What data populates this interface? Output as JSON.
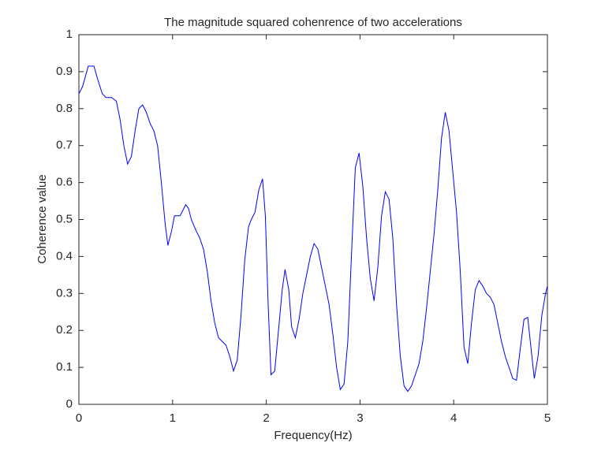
{
  "chart_data": {
    "type": "line",
    "title": "The magnitude squared cohenrence of two accelerations",
    "x_label": "Frequency(Hz)",
    "y_label": "Coherence value",
    "x": [
      0,
      0.04,
      0.1,
      0.16,
      0.2,
      0.25,
      0.29,
      0.35,
      0.4,
      0.44,
      0.48,
      0.52,
      0.56,
      0.6,
      0.64,
      0.68,
      0.72,
      0.76,
      0.8,
      0.84,
      0.88,
      0.92,
      0.95,
      0.99,
      1.02,
      1.08,
      1.14,
      1.17,
      1.2,
      1.25,
      1.29,
      1.33,
      1.37,
      1.41,
      1.45,
      1.49,
      1.53,
      1.57,
      1.61,
      1.65,
      1.69,
      1.73,
      1.77,
      1.81,
      1.84,
      1.88,
      1.92,
      1.96,
      1.99,
      2.02,
      2.05,
      2.09,
      2.13,
      2.17,
      2.2,
      2.24,
      2.27,
      2.31,
      2.35,
      2.39,
      2.43,
      2.47,
      2.51,
      2.55,
      2.59,
      2.63,
      2.67,
      2.71,
      2.75,
      2.79,
      2.83,
      2.87,
      2.91,
      2.95,
      2.99,
      3.03,
      3.07,
      3.11,
      3.15,
      3.19,
      3.23,
      3.27,
      3.31,
      3.35,
      3.39,
      3.43,
      3.47,
      3.51,
      3.55,
      3.59,
      3.63,
      3.67,
      3.71,
      3.75,
      3.79,
      3.83,
      3.87,
      3.91,
      3.95,
      3.99,
      4.03,
      4.07,
      4.11,
      4.15,
      4.19,
      4.23,
      4.27,
      4.31,
      4.35,
      4.39,
      4.43,
      4.47,
      4.51,
      4.55,
      4.59,
      4.63,
      4.67,
      4.71,
      4.75,
      4.79,
      4.83,
      4.86,
      4.9,
      4.94,
      4.98,
      5
    ],
    "series": [
      {
        "color": "#0000ff",
        "values": [
          0.84,
          0.86,
          0.915,
          0.915,
          0.88,
          0.84,
          0.83,
          0.83,
          0.82,
          0.77,
          0.7,
          0.65,
          0.67,
          0.74,
          0.8,
          0.81,
          0.79,
          0.76,
          0.74,
          0.7,
          0.6,
          0.49,
          0.43,
          0.47,
          0.51,
          0.51,
          0.54,
          0.53,
          0.5,
          0.47,
          0.45,
          0.42,
          0.36,
          0.28,
          0.22,
          0.18,
          0.17,
          0.16,
          0.13,
          0.09,
          0.12,
          0.24,
          0.39,
          0.48,
          0.5,
          0.52,
          0.58,
          0.61,
          0.51,
          0.27,
          0.08,
          0.09,
          0.2,
          0.31,
          0.365,
          0.31,
          0.21,
          0.18,
          0.23,
          0.3,
          0.35,
          0.4,
          0.435,
          0.42,
          0.37,
          0.32,
          0.27,
          0.19,
          0.1,
          0.04,
          0.055,
          0.17,
          0.41,
          0.64,
          0.68,
          0.59,
          0.45,
          0.34,
          0.28,
          0.37,
          0.51,
          0.575,
          0.555,
          0.45,
          0.27,
          0.13,
          0.05,
          0.035,
          0.05,
          0.08,
          0.11,
          0.17,
          0.26,
          0.36,
          0.46,
          0.58,
          0.72,
          0.79,
          0.74,
          0.63,
          0.52,
          0.36,
          0.155,
          0.11,
          0.22,
          0.31,
          0.335,
          0.32,
          0.3,
          0.29,
          0.27,
          0.22,
          0.17,
          0.13,
          0.1,
          0.07,
          0.065,
          0.15,
          0.23,
          0.235,
          0.14,
          0.07,
          0.13,
          0.24,
          0.3,
          0.32
        ]
      }
    ],
    "xlim": [
      0,
      5
    ],
    "xticks": [
      0,
      1,
      2,
      3,
      4,
      5
    ],
    "ylim": [
      0,
      1
    ],
    "yticks": [
      0,
      0.1,
      0.2,
      0.3,
      0.4,
      0.5,
      0.6,
      0.7,
      0.8,
      0.9,
      1
    ],
    "grid": false
  }
}
